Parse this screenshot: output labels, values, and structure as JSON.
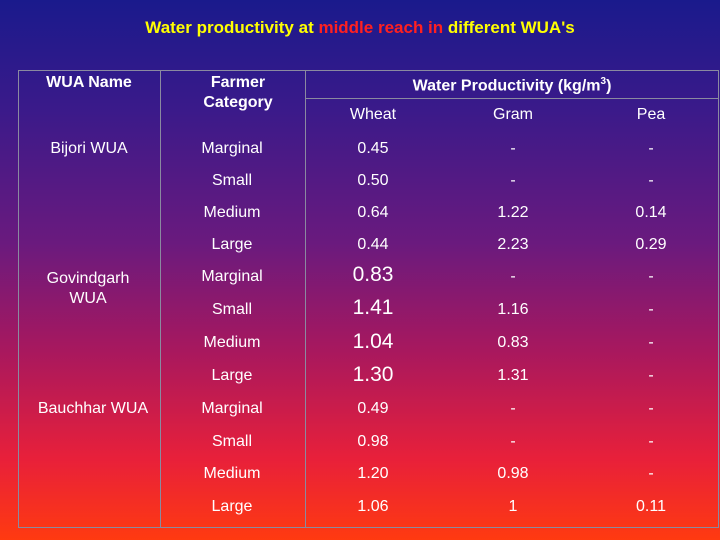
{
  "title": {
    "part1": "Water productivity at ",
    "part2": "middle reach in",
    "part3": " different WUA's"
  },
  "headers": {
    "wua_name": "WUA Name",
    "farmer_category": "Farmer Category",
    "water_productivity": "Water Productivity (kg/m",
    "water_productivity_sup": "3",
    "water_productivity_end": ")",
    "wheat": "Wheat",
    "gram": "Gram",
    "pea": "Pea"
  },
  "wuas": [
    "Bijori WUA",
    "Govindgarh WUA",
    "Bauchhar WUA"
  ],
  "rows": [
    {
      "category": "Marginal",
      "wheat": "0.45",
      "gram": "-",
      "pea": "-"
    },
    {
      "category": "Small",
      "wheat": "0.50",
      "gram": "-",
      "pea": "-"
    },
    {
      "category": "Medium",
      "wheat": "0.64",
      "gram": "1.22",
      "pea": "0.14"
    },
    {
      "category": "Large",
      "wheat": "0.44",
      "gram": "2.23",
      "pea": "0.29"
    },
    {
      "category": "Marginal",
      "wheat": "0.83",
      "gram": "-",
      "pea": "-"
    },
    {
      "category": "Small",
      "wheat": "1.41",
      "gram": "1.16",
      "pea": "-"
    },
    {
      "category": "Medium",
      "wheat": "1.04",
      "gram": "0.83",
      "pea": "-"
    },
    {
      "category": "Large",
      "wheat": "1.30",
      "gram": "1.31",
      "pea": "-"
    },
    {
      "category": "Marginal",
      "wheat": "0.49",
      "gram": "-",
      "pea": "-"
    },
    {
      "category": "Small",
      "wheat": "0.98",
      "gram": "-",
      "pea": "-"
    },
    {
      "category": "Medium",
      "wheat": "1.20",
      "gram": "0.98",
      "pea": "-"
    },
    {
      "category": "Large",
      "wheat": "1.06",
      "gram": "1",
      "pea": "0.11"
    }
  ]
}
